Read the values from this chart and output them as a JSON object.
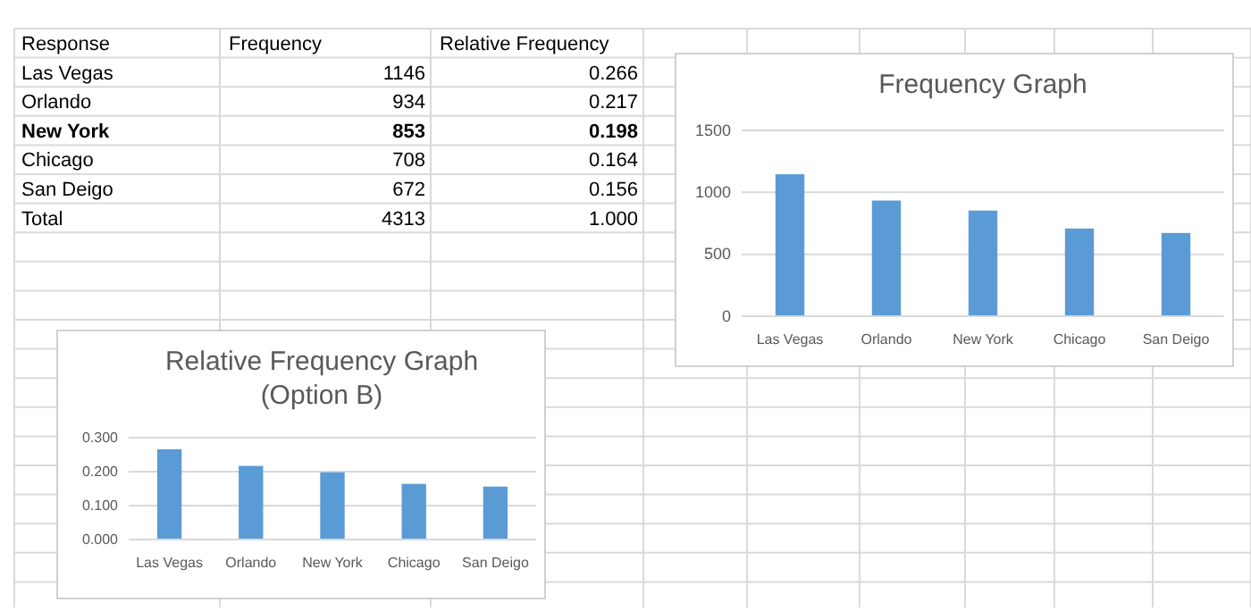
{
  "chart_data": [
    {
      "type": "other",
      "categories": [
        "Las Vegas",
        "Orlando",
        "New York",
        "Chicago",
        "San Deigo",
        "Total"
      ],
      "xlabel": "Response",
      "series": [
        {
          "name": "Frequency",
          "values": [
            1146,
            934,
            853,
            708,
            672,
            4313
          ]
        },
        {
          "name": "Relative Frequency",
          "values": [
            0.266,
            0.217,
            0.198,
            0.164,
            0.156,
            1.0
          ],
          "value_labels": [
            "0.266",
            "0.217",
            "0.198",
            "0.164",
            "0.156",
            "1.000"
          ]
        }
      ],
      "data_labels": true
    },
    {
      "type": "bar",
      "title": "Frequency Graph",
      "categories": [
        "Las Vegas",
        "Orlando",
        "New York",
        "Chicago",
        "San Deigo"
      ],
      "values": [
        1146,
        934,
        853,
        708,
        672
      ],
      "color": "#5b9bd5",
      "ylim": [
        0,
        1500
      ],
      "yticks": [
        0,
        500,
        1000,
        1500
      ],
      "grid": "y"
    },
    {
      "type": "bar",
      "title": "Relative Frequency Graph\n(Option B)",
      "categories": [
        "Las Vegas",
        "Orlando",
        "New York",
        "Chicago",
        "San Deigo"
      ],
      "values": [
        0.266,
        0.217,
        0.198,
        0.164,
        0.156
      ],
      "color": "#5b9bd5",
      "ylim": [
        0,
        0.3
      ],
      "yticks": [
        {
          "value": 0,
          "label": "0.000"
        },
        {
          "value": 0.1,
          "label": "0.100"
        },
        {
          "value": 0.2,
          "label": "0.200"
        },
        {
          "value": 0.3,
          "label": "0.300"
        }
      ],
      "grid": "y"
    }
  ]
}
